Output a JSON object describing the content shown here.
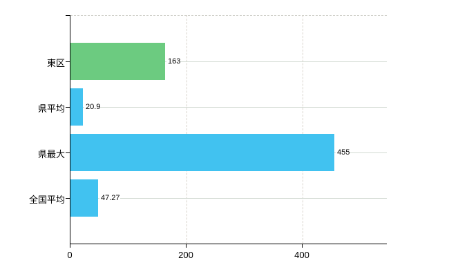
{
  "chart_data": {
    "type": "bar",
    "orientation": "horizontal",
    "title": "",
    "xlabel": "",
    "ylabel": "",
    "categories": [
      "東区",
      "県平均",
      "県最大",
      "全国平均"
    ],
    "values": [
      163,
      20.9,
      455,
      47.27
    ],
    "value_labels": [
      "163",
      "20.9",
      "455",
      "47.27"
    ],
    "bar_colors": [
      "#6ccb80",
      "#41c2f0",
      "#41c2f0",
      "#41c2f0"
    ],
    "xlim": [
      0,
      545
    ],
    "x_ticks": [
      0,
      200,
      400
    ],
    "x_tick_labels": [
      "0",
      "200",
      "400"
    ],
    "grid": true,
    "legend": "none",
    "background_color": "#ffffff",
    "axis_color": "#000000",
    "gridline_color": "#d3dad3"
  }
}
